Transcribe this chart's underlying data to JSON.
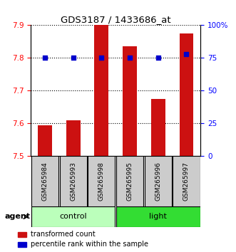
{
  "title": "GDS3187 / 1433686_at",
  "samples": [
    "GSM265984",
    "GSM265993",
    "GSM265998",
    "GSM265995",
    "GSM265996",
    "GSM265997"
  ],
  "bar_values": [
    7.595,
    7.61,
    7.9,
    7.835,
    7.675,
    7.875
  ],
  "percentile_values": [
    75,
    75,
    75,
    75,
    75,
    78
  ],
  "bar_baseline": 7.5,
  "ylim_left": [
    7.5,
    7.9
  ],
  "ylim_right": [
    0,
    100
  ],
  "yticks_left": [
    7.5,
    7.6,
    7.7,
    7.8,
    7.9
  ],
  "yticks_right": [
    0,
    25,
    50,
    75,
    100
  ],
  "ytick_labels_right": [
    "0",
    "25",
    "50",
    "75",
    "100%"
  ],
  "bar_color": "#cc1111",
  "dot_color": "#0000cc",
  "groups": [
    {
      "label": "control",
      "indices": [
        0,
        1,
        2
      ],
      "color": "#bbffbb"
    },
    {
      "label": "light",
      "indices": [
        3,
        4,
        5
      ],
      "color": "#33dd33"
    }
  ],
  "group_row_label": "agent",
  "legend_items": [
    {
      "label": "transformed count",
      "color": "#cc1111"
    },
    {
      "label": "percentile rank within the sample",
      "color": "#0000cc"
    }
  ],
  "bar_width": 0.5,
  "sample_box_color": "#cccccc"
}
